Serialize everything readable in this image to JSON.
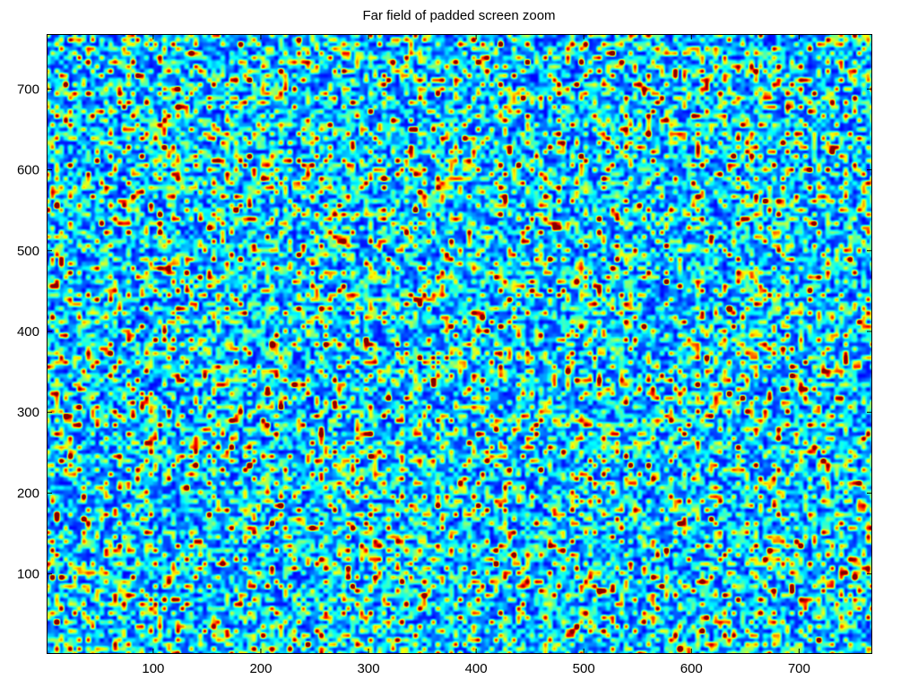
{
  "chart_data": {
    "type": "heatmap",
    "title": "Far field of padded screen zoom",
    "xlabel": "",
    "ylabel": "",
    "xlim": [
      1,
      768
    ],
    "ylim": [
      1,
      768
    ],
    "xticks": [
      100,
      200,
      300,
      400,
      500,
      600,
      700
    ],
    "yticks": [
      100,
      200,
      300,
      400,
      500,
      600,
      700
    ],
    "xtick_labels": [
      "100",
      "200",
      "300",
      "400",
      "500",
      "600",
      "700"
    ],
    "ytick_labels": [
      "100",
      "200",
      "300",
      "400",
      "500",
      "600",
      "700"
    ],
    "colormap": "jet",
    "colormap_stops": [
      "#00008f",
      "#0000ff",
      "#00ffff",
      "#ffff00",
      "#ff0000",
      "#800000"
    ],
    "pattern": "speckle",
    "grid": false,
    "legend": "none"
  }
}
